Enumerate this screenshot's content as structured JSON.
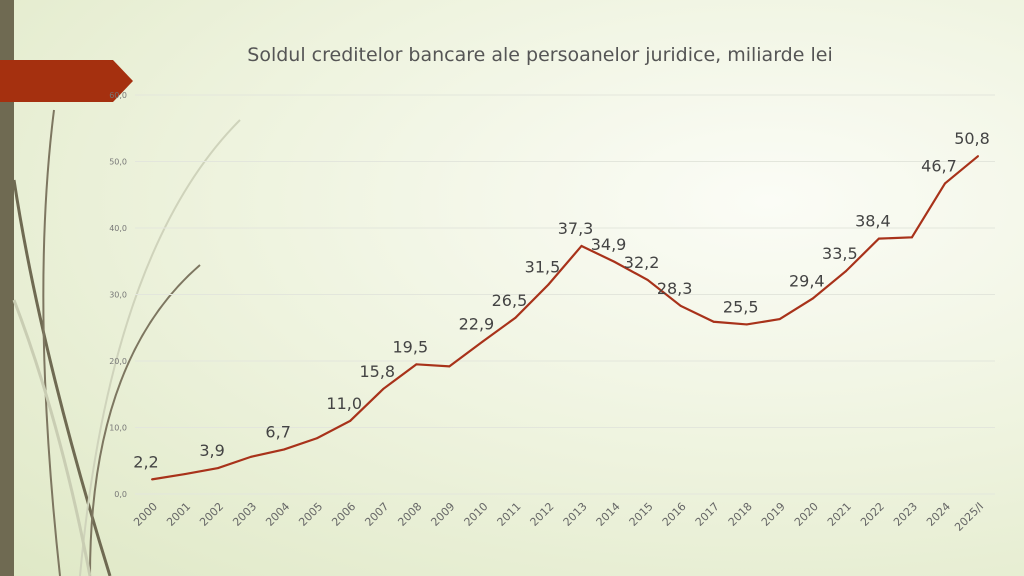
{
  "chart_data": {
    "type": "line",
    "title": "Soldul creditelor bancare ale persoanelor juridice, miliarde lei",
    "xlabel": "",
    "ylabel": "",
    "ylim": [
      0,
      60
    ],
    "yticks": [
      "0,0",
      "10,0",
      "20,0",
      "30,0",
      "40,0",
      "50,0",
      "60,0"
    ],
    "grid": true,
    "categories": [
      "2000",
      "2001",
      "2002",
      "2003",
      "2004",
      "2005",
      "2006",
      "2007",
      "2008",
      "2009",
      "2010",
      "2011",
      "2012",
      "2013",
      "2014",
      "2015",
      "2016",
      "2017",
      "2018",
      "2019",
      "2020",
      "2021",
      "2022",
      "2023",
      "2024",
      "2025/I"
    ],
    "values": [
      2.2,
      3.0,
      3.9,
      5.6,
      6.7,
      8.4,
      11.0,
      15.8,
      19.5,
      19.2,
      22.9,
      26.5,
      31.5,
      37.3,
      34.9,
      32.2,
      28.3,
      25.9,
      25.5,
      26.3,
      29.4,
      33.5,
      38.4,
      38.6,
      46.7,
      50.8
    ],
    "data_labels": [
      "2,2",
      "",
      "3,9",
      "",
      "6,7",
      "",
      "11,0",
      "15,8",
      "19,5",
      "",
      "22,9",
      "26,5",
      "31,5",
      "37,3",
      "34,9",
      "32,2",
      "28,3",
      "",
      "25,5",
      "",
      "29,4",
      "33,5",
      "38,4",
      "",
      "46,7",
      "50,8"
    ],
    "line_color": "#a8321a"
  }
}
